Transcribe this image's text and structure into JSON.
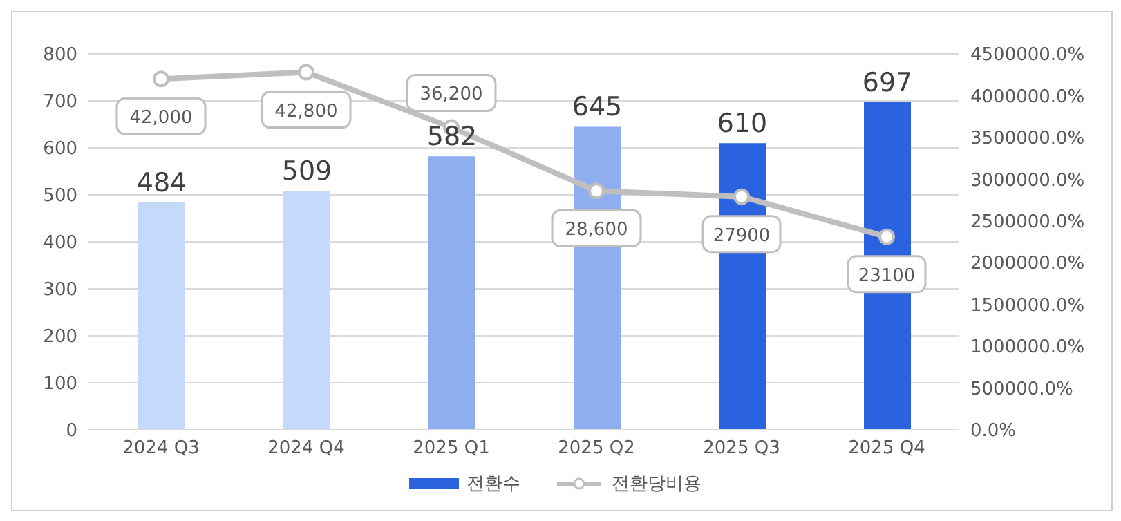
{
  "chart_data": {
    "type": "bar",
    "categories": [
      "2024 Q3",
      "2024 Q4",
      "2025 Q1",
      "2025 Q2",
      "2025 Q3",
      "2025 Q4"
    ],
    "series": [
      {
        "name": "전환수",
        "color": "#2a62e0",
        "colors": [
          "#c5d9fb",
          "#c5d9fb",
          "#8eaef0",
          "#8eaef0",
          "#2a62e0",
          "#2a62e0"
        ],
        "values": [
          484,
          509,
          582,
          645,
          610,
          697
        ],
        "value_labels": [
          "484",
          "509",
          "582",
          "645",
          "610",
          "697"
        ]
      },
      {
        "name": "전환당비용",
        "type": "line",
        "axis": "y2",
        "color": "#bfbfbf",
        "marker": "circle",
        "values": [
          42000,
          42800,
          36200,
          28600,
          27900,
          23100
        ],
        "value_labels": [
          "42,000",
          "42,800",
          "36,200",
          "28,600",
          "27900",
          "23100"
        ]
      }
    ],
    "ylim": [
      0,
      800
    ],
    "yticks": [
      0,
      100,
      200,
      300,
      400,
      500,
      600,
      700,
      800
    ],
    "y2lim": [
      0,
      45000
    ],
    "y2ticks": [
      {
        "value": 0,
        "label": "0.0%"
      },
      {
        "value": 5000,
        "label": "500000.0%"
      },
      {
        "value": 10000,
        "label": "1000000.0%"
      },
      {
        "value": 15000,
        "label": "1500000.0%"
      },
      {
        "value": 20000,
        "label": "2000000.0%"
      },
      {
        "value": 25000,
        "label": "2500000.0%"
      },
      {
        "value": 30000,
        "label": "3000000.0%"
      },
      {
        "value": 35000,
        "label": "3500000.0%"
      },
      {
        "value": 40000,
        "label": "4000000.0%"
      },
      {
        "value": 45000,
        "label": "4500000.0%"
      }
    ],
    "grid": "y",
    "legend": "bottom"
  }
}
